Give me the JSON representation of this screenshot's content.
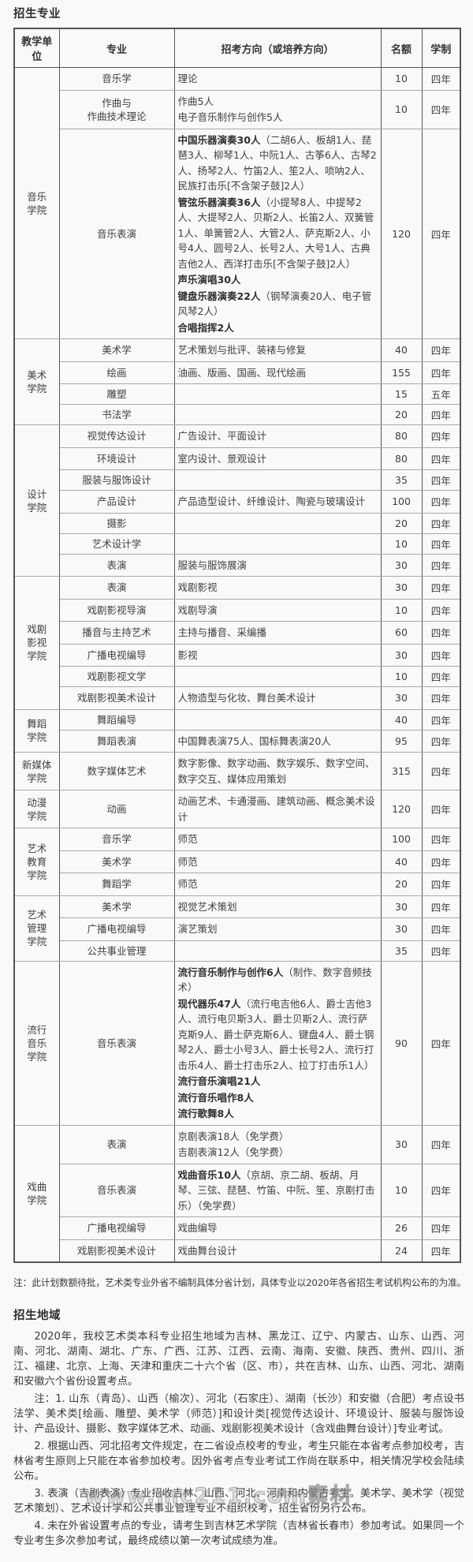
{
  "doc": {
    "title_majors": "招生专业",
    "plan_note": "注：此计划数额待批，艺术类专业外省不编制具体分省计划，具体专业以2020年各省招生考试机构公布的为准。",
    "title_region": "招生地域",
    "watermark": "www.mc211.com素材"
  },
  "table": {
    "headers": [
      "教学单位",
      "专业",
      "招考方向（或培养方向）",
      "名额",
      "学制"
    ],
    "groups": [
      {
        "unit": "音乐\n学院",
        "rows": [
          {
            "major": "音乐学",
            "dir": [
              [
                {
                  "t": "理论"
                }
              ]
            ],
            "quota": "10",
            "years": "四年"
          },
          {
            "major": "作曲与\n作曲技术理论",
            "dir": [
              [
                {
                  "t": "作曲5人"
                }
              ],
              [
                {
                  "t": "电子音乐制作与创作5人"
                }
              ]
            ],
            "quota": "10",
            "years": "四年"
          },
          {
            "major": "音乐表演",
            "dir": [
              [
                {
                  "t": "中国乐器演奏30人",
                  "b": true
                },
                {
                  "t": "（二胡6人、板胡1人、琵琶3人、柳琴1人、中阮1人、古筝6人、古琴2人、扬琴2人、竹笛2人、笙2人、唢呐2人、民族打击乐[不含架子鼓]2人）"
                }
              ],
              [
                {
                  "t": "管弦乐器演奏36人",
                  "b": true
                },
                {
                  "t": "（小提琴8人、中提琴2人、大提琴2人、贝斯2人、长笛2人、双簧管1人、单簧管2人、大管2人、萨克斯2人、小号4人、圆号2人、长号2人、大号1人、古典吉他2人、西洋打击乐[不含架子鼓]2人）"
                }
              ],
              [
                {
                  "t": "声乐演唱30人",
                  "b": true
                }
              ],
              [
                {
                  "t": "键盘乐器演奏22人",
                  "b": true
                },
                {
                  "t": "（钢琴演奏20人、电子管风琴2人）"
                }
              ],
              [
                {
                  "t": "合唱指挥2人",
                  "b": true
                }
              ]
            ],
            "quota": "120",
            "years": "四年"
          }
        ]
      },
      {
        "unit": "美术\n学院",
        "rows": [
          {
            "major": "美术学",
            "dir": [
              [
                {
                  "t": "艺术策划与批评、装裱与修复"
                }
              ]
            ],
            "quota": "40",
            "years": "四年"
          },
          {
            "major": "绘画",
            "dir": [
              [
                {
                  "t": "油画、版画、国画、现代绘画"
                }
              ]
            ],
            "quota": "155",
            "years": "四年"
          },
          {
            "major": "雕塑",
            "dir": [],
            "quota": "15",
            "years": "五年"
          },
          {
            "major": "书法学",
            "dir": [],
            "quota": "20",
            "years": "四年"
          }
        ]
      },
      {
        "unit": "设计\n学院",
        "rows": [
          {
            "major": "视觉传达设计",
            "dir": [
              [
                {
                  "t": "广告设计、平面设计"
                }
              ]
            ],
            "quota": "80",
            "years": "四年"
          },
          {
            "major": "环境设计",
            "dir": [
              [
                {
                  "t": "室内设计、景观设计"
                }
              ]
            ],
            "quota": "80",
            "years": "四年"
          },
          {
            "major": "服装与服饰设计",
            "dir": [],
            "quota": "35",
            "years": "四年"
          },
          {
            "major": "产品设计",
            "dir": [
              [
                {
                  "t": "产品造型设计、纤维设计、陶瓷与玻璃设计"
                }
              ]
            ],
            "quota": "100",
            "years": "四年"
          },
          {
            "major": "摄影",
            "dir": [],
            "quota": "20",
            "years": "四年"
          },
          {
            "major": "艺术设计学",
            "dir": [],
            "quota": "10",
            "years": "四年"
          },
          {
            "major": "表演",
            "dir": [
              [
                {
                  "t": "服装与服饰展演"
                }
              ]
            ],
            "quota": "30",
            "years": "四年"
          }
        ]
      },
      {
        "unit": "戏剧\n影视\n学院",
        "rows": [
          {
            "major": "表演",
            "dir": [
              [
                {
                  "t": "戏剧影视"
                }
              ]
            ],
            "quota": "30",
            "years": "四年"
          },
          {
            "major": "戏剧影视导演",
            "dir": [
              [
                {
                  "t": "戏剧导演"
                }
              ]
            ],
            "quota": "10",
            "years": "四年"
          },
          {
            "major": "播音与主持艺术",
            "dir": [
              [
                {
                  "t": "主持与播音、采编播"
                }
              ]
            ],
            "quota": "60",
            "years": "四年"
          },
          {
            "major": "广播电视编导",
            "dir": [
              [
                {
                  "t": "影视"
                }
              ]
            ],
            "quota": "30",
            "years": "四年"
          },
          {
            "major": "戏剧影视文学",
            "dir": [],
            "quota": "10",
            "years": "四年"
          },
          {
            "major": "戏剧影视美术设计",
            "dir": [
              [
                {
                  "t": "人物造型与化妆、舞台美术设计"
                }
              ]
            ],
            "quota": "30",
            "years": "四年"
          }
        ]
      },
      {
        "unit": "舞蹈\n学院",
        "rows": [
          {
            "major": "舞蹈编导",
            "dir": [],
            "quota": "40",
            "years": "四年"
          },
          {
            "major": "舞蹈表演",
            "dir": [
              [
                {
                  "t": "中国舞表演75人、国标舞表演20人"
                }
              ]
            ],
            "quota": "95",
            "years": "四年"
          }
        ]
      },
      {
        "unit": "新媒体\n学院",
        "rows": [
          {
            "major": "数字媒体艺术",
            "dir": [
              [
                {
                  "t": "数字影像、数字动画、数字娱乐、数字空间、数字交互、媒体应用策划"
                }
              ]
            ],
            "quota": "315",
            "years": "四年"
          }
        ]
      },
      {
        "unit": "动漫\n学院",
        "rows": [
          {
            "major": "动画",
            "dir": [
              [
                {
                  "t": "动画艺术、卡通漫画、建筑动画、概念美术设计"
                }
              ]
            ],
            "quota": "120",
            "years": "四年"
          }
        ]
      },
      {
        "unit": "艺术\n教育\n学院",
        "rows": [
          {
            "major": "音乐学",
            "dir": [
              [
                {
                  "t": "师范"
                }
              ]
            ],
            "quota": "100",
            "years": "四年"
          },
          {
            "major": "美术学",
            "dir": [
              [
                {
                  "t": "师范"
                }
              ]
            ],
            "quota": "40",
            "years": "四年"
          },
          {
            "major": "舞蹈学",
            "dir": [
              [
                {
                  "t": "师范"
                }
              ]
            ],
            "quota": "20",
            "years": "四年"
          }
        ]
      },
      {
        "unit": "艺术\n管理\n学院",
        "rows": [
          {
            "major": "美术学",
            "dir": [
              [
                {
                  "t": "视觉艺术策划"
                }
              ]
            ],
            "quota": "30",
            "years": "四年"
          },
          {
            "major": "广播电视编导",
            "dir": [
              [
                {
                  "t": "演艺策划"
                }
              ]
            ],
            "quota": "30",
            "years": "四年"
          },
          {
            "major": "公共事业管理",
            "dir": [],
            "quota": "35",
            "years": "四年"
          }
        ]
      },
      {
        "unit": "流行\n音乐\n学院",
        "rows": [
          {
            "major": "音乐表演",
            "dir": [
              [
                {
                  "t": "流行音乐制作与创作6人",
                  "b": true
                },
                {
                  "t": "（制作、数字音频技术）"
                }
              ],
              [
                {
                  "t": "现代器乐47人",
                  "b": true
                },
                {
                  "t": "（流行电吉他6人、爵士吉他3人、流行电贝斯3人、爵士贝斯2人、流行萨克斯9人、爵士萨克斯6人、键盘4人、爵士钢琴2人、爵士小号3人、爵士长号2人、流行打击乐4人、爵士打击乐2人、拉丁打击乐1人）"
                }
              ],
              [
                {
                  "t": "流行音乐演唱21人",
                  "b": true
                }
              ],
              [
                {
                  "t": "流行音乐唱作8人",
                  "b": true
                }
              ],
              [
                {
                  "t": "流行歌舞8人",
                  "b": true
                }
              ]
            ],
            "quota": "90",
            "years": "四年"
          }
        ]
      },
      {
        "unit": "戏曲\n学院",
        "rows": [
          {
            "major": "表演",
            "dir": [
              [
                {
                  "t": "京剧表演18人（免学费）"
                }
              ],
              [
                {
                  "t": "吉剧表演12人（免学费）"
                }
              ]
            ],
            "quota": "30",
            "years": "四年"
          },
          {
            "major": "音乐表演",
            "dir": [
              [
                {
                  "t": "戏曲音乐10人",
                  "b": true
                },
                {
                  "t": "（京胡、京二胡、板胡、月琴、三弦、琵琶、竹笛、中阮、笙、京剧打击乐）（免学费）"
                }
              ]
            ],
            "quota": "10",
            "years": "四年"
          },
          {
            "major": "广播电视编导",
            "dir": [
              [
                {
                  "t": "戏曲编导"
                }
              ]
            ],
            "quota": "26",
            "years": "四年"
          },
          {
            "major": "戏剧影视美术设计",
            "dir": [
              [
                {
                  "t": "戏曲舞台设计"
                }
              ]
            ],
            "quota": "24",
            "years": "四年"
          }
        ]
      }
    ]
  },
  "region": {
    "paragraphs": [
      "2020年，我校艺术类本科专业招生地域为吉林、黑龙江、辽宁、内蒙古、山东、山西、河南、河北、湖南、湖北、广东、广西、江苏、江西、云南、海南、安徽、陕西、贵州、四川、浙江、福建、北京、上海、天津和重庆二十六个省（区、市），共在吉林、山东、山西、河北、湖南和安徽六个省份设置考点。",
      "注：1. 山东（青岛）、山西（榆次）、河北（石家庄）、湖南（长沙）和安徽（合肥）考点设书法学、美术类[绘画、雕塑、美术学（师范）]和设计类[视觉传达设计、环境设计、服装与服饰设计、产品设计、摄影、数字媒体艺术、动画、戏剧影视美术设计（含戏曲舞台设计）]专业考试。",
      "2. 根据山西、河北招考文件规定，在二省设点校考的专业，考生只能在本省考点参加校考，吉林省考生原则上只能在本省参加校考。因外省考点专业考试工作尚在联系中，相关情况学校会陆续公布。",
      "3. 表演（吉剧表演）专业招收吉林、山西、河北、河南和内蒙古考生。美术学、美术学（视觉艺术策划）、艺术设计学和公共事业管理专业不组织校考，招生省份另行公布。",
      "4. 未在外省设置考点的专业，请考生到吉林艺术学院（吉林省长春市）参加考试。如果同一个专业考生多次参加考试，最终成绩以第一次考试成绩为准。"
    ]
  }
}
